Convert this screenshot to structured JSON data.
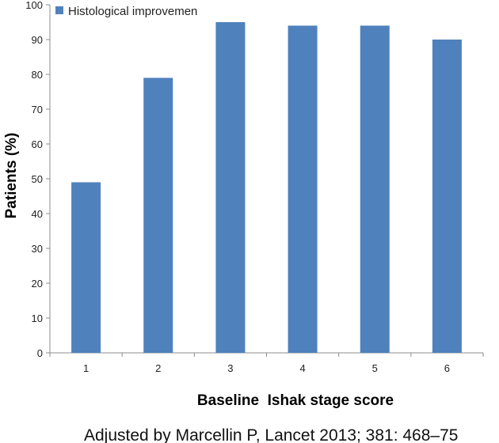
{
  "chart_data": {
    "type": "bar",
    "categories": [
      "1",
      "2",
      "3",
      "4",
      "5",
      "6"
    ],
    "series": [
      {
        "name": "Histological improvemen",
        "values": [
          49,
          79,
          95,
          94,
          94,
          90
        ],
        "color": "#4f81bd"
      }
    ],
    "xlabel": "Baseline  Ishak stage score",
    "ylabel": "Patients (%)",
    "ylim": [
      0,
      100
    ],
    "yticks": [
      0,
      10,
      20,
      30,
      40,
      50,
      60,
      70,
      80,
      90,
      100
    ],
    "grid": false,
    "legend_position": "top-left"
  },
  "footnote": "Adjusted by Marcellin P, Lancet 2013; 381: 468–75"
}
